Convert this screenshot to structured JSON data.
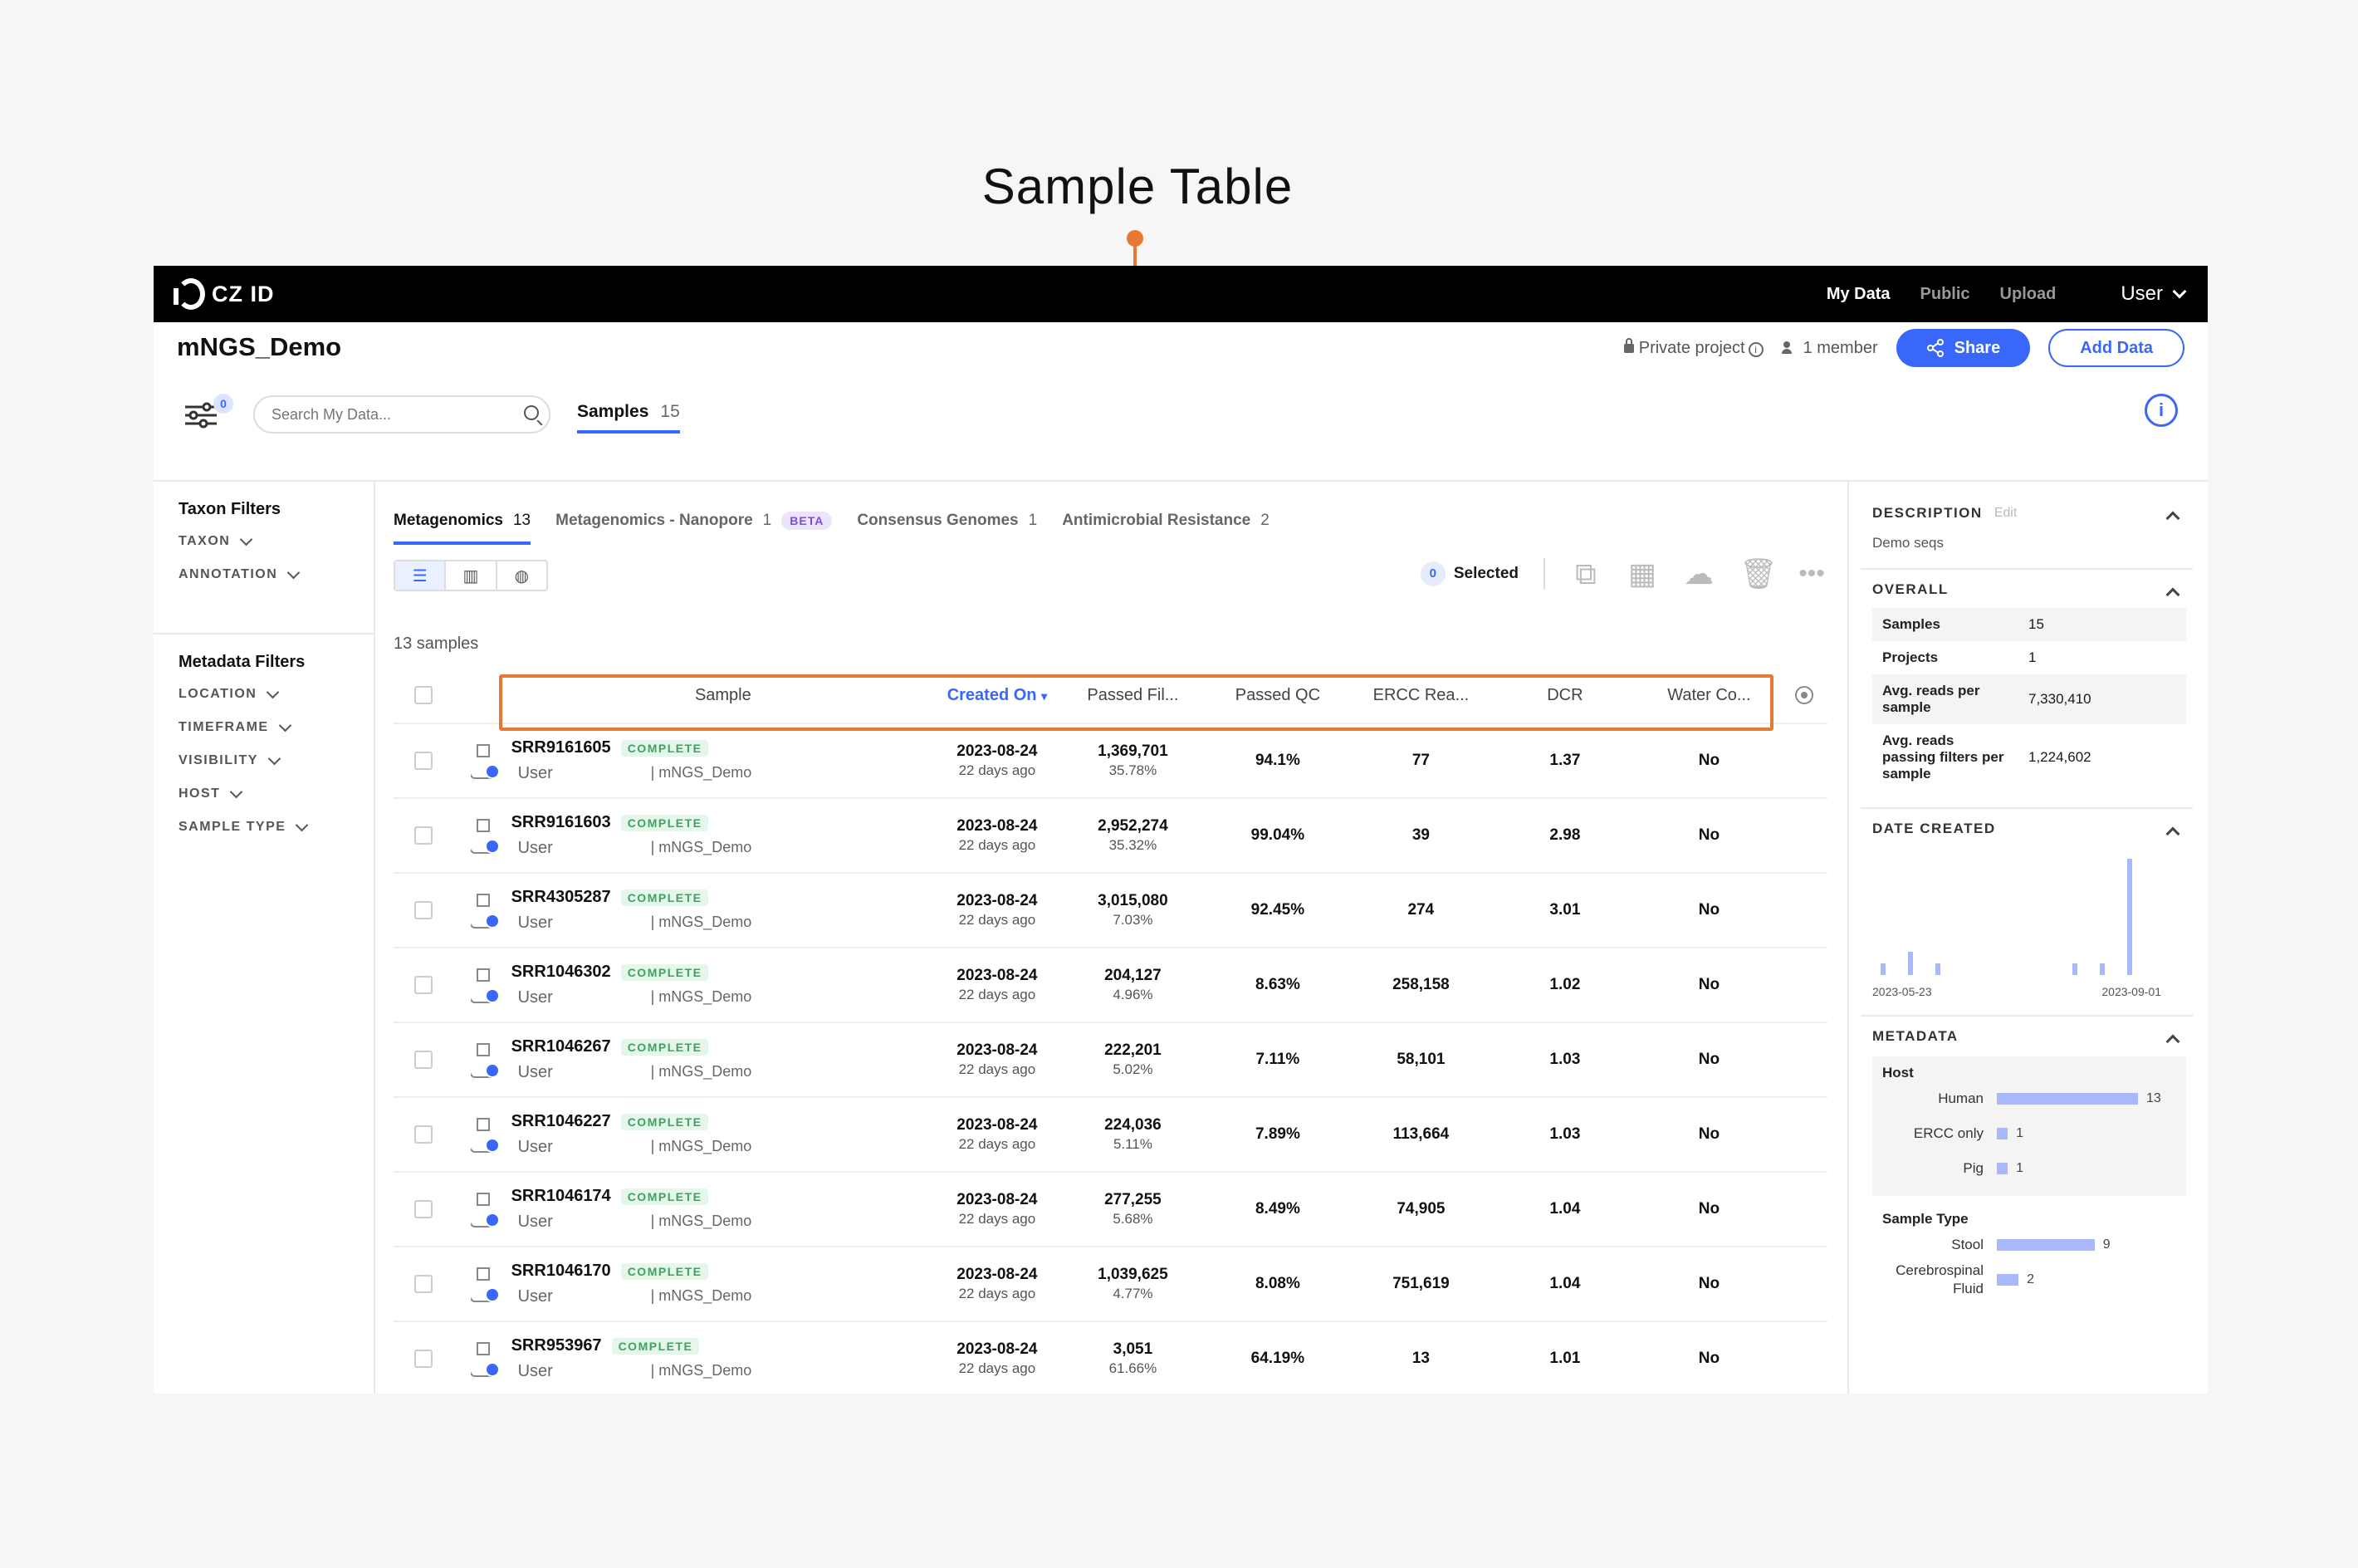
{
  "annotation": {
    "title": "Sample Table"
  },
  "nav": {
    "logo": "CZ ID",
    "links": [
      "My Data",
      "Public",
      "Upload"
    ],
    "user": "User"
  },
  "project": {
    "title": "mNGS_Demo",
    "privacy": "Private project",
    "members": "1 member",
    "share_label": "Share",
    "add_data_label": "Add Data"
  },
  "toolbar": {
    "filter_count": "0",
    "search_placeholder": "Search My Data...",
    "samples_tab": "Samples",
    "samples_count": "15"
  },
  "left_panel": {
    "taxon_heading": "Taxon Filters",
    "taxon_items": [
      "TAXON",
      "ANNOTATION"
    ],
    "metadata_heading": "Metadata Filters",
    "metadata_items": [
      "LOCATION",
      "TIMEFRAME",
      "VISIBILITY",
      "HOST",
      "SAMPLE TYPE"
    ]
  },
  "workflow_tabs": [
    {
      "label": "Metagenomics",
      "count": "13"
    },
    {
      "label": "Metagenomics - Nanopore",
      "count": "1",
      "badge": "BETA"
    },
    {
      "label": "Consensus Genomes",
      "count": "1"
    },
    {
      "label": "Antimicrobial Resistance",
      "count": "2"
    }
  ],
  "actions": {
    "selected_count": "0",
    "selected_label": "Selected"
  },
  "samples_count_label": "13 samples",
  "table": {
    "headers": [
      "Sample",
      "Created On",
      "Passed Fil...",
      "Passed QC",
      "ERCC Rea...",
      "DCR",
      "Water Co..."
    ],
    "status_label": "COMPLETE",
    "rows": [
      {
        "name": "SRR9161605",
        "user": "User",
        "project": "| mNGS_Demo",
        "date": "2023-08-24",
        "ago": "22 days ago",
        "pf": "1,369,701",
        "pf_pct": "35.78%",
        "qc": "94.1%",
        "ercc": "77",
        "dcr": "1.37",
        "water": "No"
      },
      {
        "name": "SRR9161603",
        "user": "User",
        "project": "| mNGS_Demo",
        "date": "2023-08-24",
        "ago": "22 days ago",
        "pf": "2,952,274",
        "pf_pct": "35.32%",
        "qc": "99.04%",
        "ercc": "39",
        "dcr": "2.98",
        "water": "No"
      },
      {
        "name": "SRR4305287",
        "user": "User",
        "project": "| mNGS_Demo",
        "date": "2023-08-24",
        "ago": "22 days ago",
        "pf": "3,015,080",
        "pf_pct": "7.03%",
        "qc": "92.45%",
        "ercc": "274",
        "dcr": "3.01",
        "water": "No"
      },
      {
        "name": "SRR1046302",
        "user": "User",
        "project": "| mNGS_Demo",
        "date": "2023-08-24",
        "ago": "22 days ago",
        "pf": "204,127",
        "pf_pct": "4.96%",
        "qc": "8.63%",
        "ercc": "258,158",
        "dcr": "1.02",
        "water": "No"
      },
      {
        "name": "SRR1046267",
        "user": "User",
        "project": "| mNGS_Demo",
        "date": "2023-08-24",
        "ago": "22 days ago",
        "pf": "222,201",
        "pf_pct": "5.02%",
        "qc": "7.11%",
        "ercc": "58,101",
        "dcr": "1.03",
        "water": "No"
      },
      {
        "name": "SRR1046227",
        "user": "User",
        "project": "| mNGS_Demo",
        "date": "2023-08-24",
        "ago": "22 days ago",
        "pf": "224,036",
        "pf_pct": "5.11%",
        "qc": "7.89%",
        "ercc": "113,664",
        "dcr": "1.03",
        "water": "No"
      },
      {
        "name": "SRR1046174",
        "user": "User",
        "project": "| mNGS_Demo",
        "date": "2023-08-24",
        "ago": "22 days ago",
        "pf": "277,255",
        "pf_pct": "5.68%",
        "qc": "8.49%",
        "ercc": "74,905",
        "dcr": "1.04",
        "water": "No"
      },
      {
        "name": "SRR1046170",
        "user": "User",
        "project": "| mNGS_Demo",
        "date": "2023-08-24",
        "ago": "22 days ago",
        "pf": "1,039,625",
        "pf_pct": "4.77%",
        "qc": "8.08%",
        "ercc": "751,619",
        "dcr": "1.04",
        "water": "No"
      },
      {
        "name": "SRR953967",
        "user": "User",
        "project": "| mNGS_Demo",
        "date": "2023-08-24",
        "ago": "22 days ago",
        "pf": "3,051",
        "pf_pct": "61.66%",
        "qc": "64.19%",
        "ercc": "13",
        "dcr": "1.01",
        "water": "No"
      }
    ]
  },
  "right_panel": {
    "description_heading": "DESCRIPTION",
    "edit_label": "Edit",
    "description": "Demo seqs",
    "overall_heading": "OVERALL",
    "overall": [
      {
        "k": "Samples",
        "v": "15"
      },
      {
        "k": "Projects",
        "v": "1"
      },
      {
        "k": "Avg. reads per sample",
        "v": "7,330,410"
      },
      {
        "k": "Avg. reads passing filters per sample",
        "v": "1,224,602"
      }
    ],
    "date_heading": "DATE CREATED",
    "date_histogram": [
      1,
      2,
      1,
      0,
      0,
      0,
      0,
      1,
      1,
      10
    ],
    "date_start": "2023-05-23",
    "date_end": "2023-09-01",
    "metadata_heading": "METADATA",
    "host_label": "Host",
    "host": [
      {
        "label": "Human",
        "value": 13
      },
      {
        "label": "ERCC only",
        "value": 1
      },
      {
        "label": "Pig",
        "value": 1
      }
    ],
    "sample_type_label": "Sample Type",
    "sample_type": [
      {
        "label": "Stool",
        "value": 9
      },
      {
        "label": "Cerebrospinal Fluid",
        "value": 2
      }
    ]
  },
  "colors": {
    "accent": "#3867fa",
    "callout": "#e87935",
    "complete": "#3ca35e",
    "bar": "#a9b8f8"
  }
}
